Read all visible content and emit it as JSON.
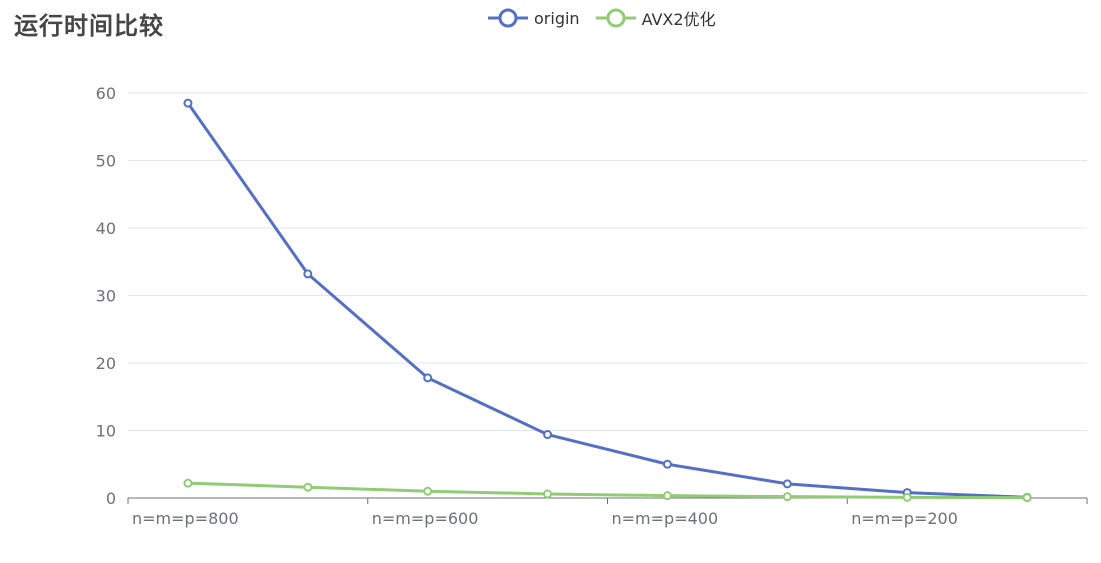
{
  "title": "运行时间比较",
  "colors": {
    "origin": "#5470c6",
    "avx2": "#91cc75",
    "grid": "#e0e6f1",
    "axis": "#6e7079"
  },
  "chart_data": {
    "type": "line",
    "title": "运行时间比较",
    "x": [
      "n=m=p=800",
      "",
      "n=m=p=600",
      "",
      "n=m=p=400",
      "",
      "n=m=p=200",
      ""
    ],
    "x_tick_labels": [
      "n=m=p=800",
      "n=m=p=600",
      "n=m=p=400",
      "n=m=p=200"
    ],
    "ylim": [
      0,
      60
    ],
    "y_ticks": [
      0,
      10,
      20,
      30,
      40,
      50,
      60
    ],
    "grid": true,
    "legend_position": "top-center",
    "series": [
      {
        "name": "origin",
        "values": [
          58.5,
          33.2,
          17.8,
          9.4,
          5.0,
          2.1,
          0.8,
          0.1
        ]
      },
      {
        "name": "AVX2优化",
        "values": [
          2.2,
          1.6,
          1.0,
          0.6,
          0.35,
          0.2,
          0.1,
          0.05
        ]
      }
    ]
  }
}
